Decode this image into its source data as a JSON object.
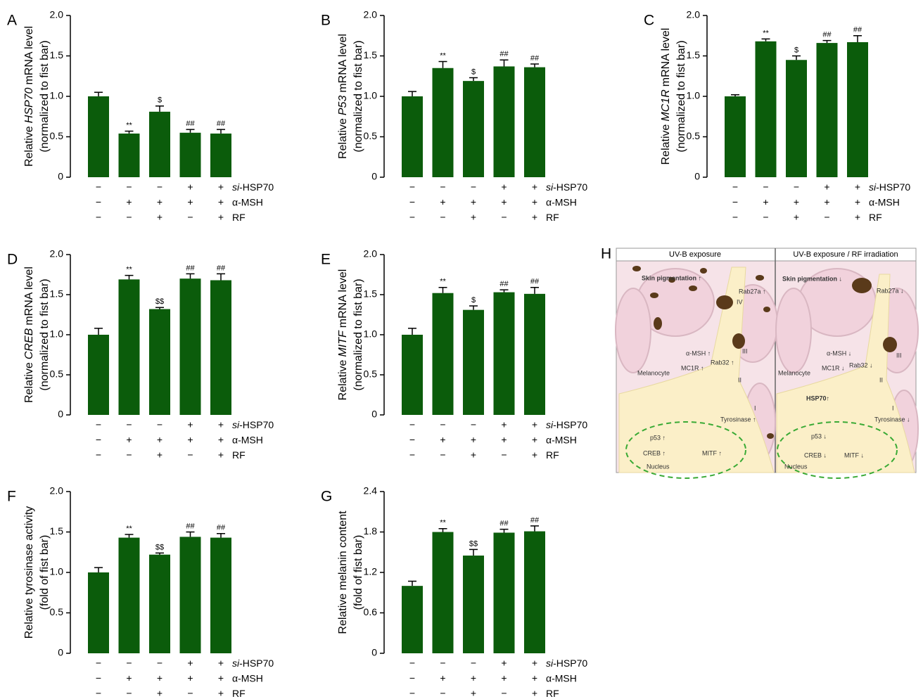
{
  "conditions": {
    "rows": [
      {
        "label": [
          "si",
          "-HSP70"
        ],
        "italic": [
          0
        ],
        "signs": [
          "−",
          "−",
          "−",
          "+",
          "+"
        ]
      },
      {
        "label": [
          "α-MSH"
        ],
        "italic": [],
        "signs": [
          "−",
          "+",
          "+",
          "+",
          "+"
        ]
      },
      {
        "label": [
          "RF"
        ],
        "italic": [],
        "signs": [
          "−",
          "−",
          "+",
          "−",
          "+"
        ]
      }
    ]
  },
  "chart_data": [
    {
      "type": "bar",
      "panel": "A",
      "ylabel": [
        "Relative",
        "HSP70",
        "mRNA level"
      ],
      "ylabel_italic": [
        1
      ],
      "ylabel2": "(normalized to fist bar)",
      "values": [
        1.0,
        0.54,
        0.81,
        0.55,
        0.54
      ],
      "errors": [
        0.05,
        0.03,
        0.07,
        0.04,
        0.05
      ],
      "annotations": [
        null,
        "**",
        "$",
        "##",
        "##"
      ],
      "color": "#0b5c0b",
      "ylim": [
        0,
        2
      ],
      "yticks": [
        0,
        0.5,
        {
          "value": 1,
          "label": "1.0"
        },
        1.5,
        {
          "value": 2,
          "label": "2.0"
        }
      ]
    },
    {
      "type": "bar",
      "panel": "B",
      "ylabel": [
        "Relative",
        "P53",
        "mRNA level"
      ],
      "ylabel_italic": [
        1
      ],
      "ylabel2": "(normalized to fist bar)",
      "values": [
        1.0,
        1.35,
        1.19,
        1.37,
        1.36
      ],
      "errors": [
        0.06,
        0.08,
        0.04,
        0.08,
        0.04
      ],
      "annotations": [
        null,
        "**",
        "$",
        "##",
        "##"
      ],
      "color": "#0b5c0b",
      "ylim": [
        0,
        2
      ],
      "yticks": [
        0,
        0.5,
        {
          "value": 1,
          "label": "1.0"
        },
        1.5,
        {
          "value": 2,
          "label": "2.0"
        }
      ]
    },
    {
      "type": "bar",
      "panel": "C",
      "ylabel": [
        "Relative",
        "MC1R",
        "mRNA level"
      ],
      "ylabel_italic": [
        1
      ],
      "ylabel2": "(normalized to fist bar)",
      "values": [
        1.0,
        1.68,
        1.45,
        1.66,
        1.67
      ],
      "errors": [
        0.02,
        0.03,
        0.05,
        0.03,
        0.08
      ],
      "annotations": [
        null,
        "**",
        "$",
        "##",
        "##"
      ],
      "color": "#0b5c0b",
      "ylim": [
        0,
        2
      ],
      "yticks": [
        0,
        0.5,
        {
          "value": 1,
          "label": "1.0"
        },
        1.5,
        {
          "value": 2,
          "label": "2.0"
        }
      ]
    },
    {
      "type": "bar",
      "panel": "D",
      "ylabel": [
        "Relative",
        "CREB",
        "mRNA level"
      ],
      "ylabel_italic": [
        1
      ],
      "ylabel2": "(normalized to fist bar)",
      "values": [
        1.0,
        1.69,
        1.32,
        1.7,
        1.68
      ],
      "errors": [
        0.08,
        0.05,
        0.02,
        0.06,
        0.08
      ],
      "annotations": [
        null,
        "**",
        "$$",
        "##",
        "##"
      ],
      "color": "#0b5c0b",
      "ylim": [
        0,
        2
      ],
      "yticks": [
        0,
        0.5,
        {
          "value": 1,
          "label": "1.0"
        },
        1.5,
        {
          "value": 2,
          "label": "2.0"
        }
      ]
    },
    {
      "type": "bar",
      "panel": "E",
      "ylabel": [
        "Relative",
        "MITF",
        "mRNA level"
      ],
      "ylabel_italic": [
        1
      ],
      "ylabel2": "(normalized to fist bar)",
      "values": [
        1.0,
        1.52,
        1.31,
        1.53,
        1.51
      ],
      "errors": [
        0.08,
        0.07,
        0.05,
        0.03,
        0.08
      ],
      "annotations": [
        null,
        "**",
        "$",
        "##",
        "##"
      ],
      "color": "#0b5c0b",
      "ylim": [
        0,
        2
      ],
      "yticks": [
        0,
        0.5,
        {
          "value": 1,
          "label": "1.0"
        },
        1.5,
        {
          "value": 2,
          "label": "2.0"
        }
      ]
    },
    {
      "type": "bar",
      "panel": "F",
      "ylabel": [
        "Relative tyrosinase activity"
      ],
      "ylabel_italic": [],
      "ylabel2": "(fold of fist bar)",
      "values": [
        1.0,
        1.43,
        1.22,
        1.44,
        1.43
      ],
      "errors": [
        0.06,
        0.04,
        0.02,
        0.06,
        0.05
      ],
      "annotations": [
        null,
        "**",
        "$$",
        "##",
        "##"
      ],
      "color": "#0b5c0b",
      "ylim": [
        0,
        2
      ],
      "yticks": [
        0,
        0.5,
        {
          "value": 1,
          "label": "1.0"
        },
        1.5,
        {
          "value": 2,
          "label": "2.0"
        }
      ]
    },
    {
      "type": "bar",
      "panel": "G",
      "ylabel": [
        "Relative melanin content"
      ],
      "ylabel_italic": [],
      "ylabel2": "(fold of fist bar)",
      "values": [
        1.0,
        1.8,
        1.45,
        1.79,
        1.81
      ],
      "errors": [
        0.07,
        0.05,
        0.09,
        0.05,
        0.08
      ],
      "annotations": [
        null,
        "**",
        "$$",
        "##",
        "##"
      ],
      "color": "#0b5c0b",
      "ylim": [
        0,
        2.4
      ],
      "yticks": [
        0,
        0.6,
        1.2,
        1.8,
        2.4
      ]
    }
  ],
  "diagram": {
    "panel": "H",
    "headers": [
      "UV-B exposure",
      "UV-B exposure / RF irradiation"
    ],
    "left_labels": [
      "Skin pigmentation ↑",
      "Rab27a ↑",
      "IV",
      "III",
      "α-MSH ↑",
      "MC1R ↑",
      "Rab32 ↑",
      "II",
      "Melanocyte",
      "I",
      "Tyrosinase ↑",
      "p53 ↑",
      "CREB ↑",
      "MITF ↑",
      "Nucleus"
    ],
    "right_labels": [
      "Skin pigmentation ↓",
      "Rab27a ↓",
      "III",
      "α-MSH ↓",
      "MC1R ↓",
      "Rab32 ↓",
      "II",
      "Melanocyte",
      "HSP70↑",
      "I",
      "Tyrosinase ↓",
      "p53 ↓",
      "CREB ↓",
      "MITF ↓",
      "Nucleus"
    ]
  }
}
